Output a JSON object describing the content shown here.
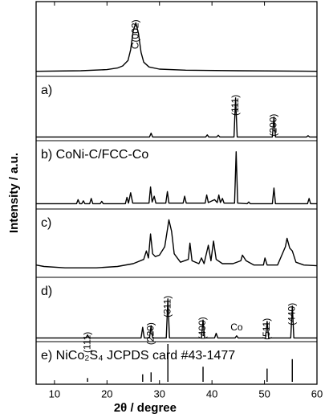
{
  "chart_data": {
    "type": "line",
    "xlabel": "2θ / degree",
    "ylabel": "Intensity / a.u.",
    "color": "#000000",
    "xlim": [
      6.5,
      60
    ],
    "xticks": [
      10,
      20,
      30,
      40,
      50,
      60
    ],
    "panels": [
      {
        "kind": "line",
        "ylim": [
          0,
          130
        ],
        "x": [
          6.5,
          15,
          20,
          22,
          23,
          24,
          24.5,
          25,
          25.5,
          26,
          26.5,
          27,
          28,
          30,
          35,
          45,
          60
        ],
        "values": [
          5,
          6,
          8,
          11,
          15,
          25,
          45,
          80,
          95,
          75,
          40,
          22,
          13,
          9,
          7,
          6,
          5
        ],
        "annotations": [
          {
            "text": "C(002)",
            "x": 25.5,
            "vertical": true
          }
        ]
      },
      {
        "kind": "line",
        "label": "a)",
        "ylim": [
          0,
          140
        ],
        "x": [
          6.5,
          28.1,
          28.4,
          28.7,
          38.8,
          39.1,
          39.4,
          40.9,
          41.2,
          41.5,
          44.2,
          44.5,
          44.8,
          51.5,
          51.8,
          52.1,
          58,
          58.3,
          58.6,
          60
        ],
        "values": [
          3,
          3,
          12,
          3,
          3,
          8,
          3,
          3,
          7,
          3,
          3,
          95,
          3,
          3,
          50,
          3,
          3,
          6,
          3,
          3
        ],
        "annotations": [
          {
            "text": "(111)",
            "x": 44.5,
            "vertical": true
          },
          {
            "text": "(200)",
            "x": 51.8,
            "vertical": true
          }
        ]
      },
      {
        "kind": "line",
        "label": "b) CoNi-C/FCC-Co",
        "ylim": [
          0,
          110
        ],
        "x": [
          6.5,
          14.2,
          14.5,
          14.8,
          15.2,
          15.5,
          15.8,
          16.7,
          17,
          17.3,
          18.7,
          19,
          19.3,
          23.5,
          23.8,
          24.1,
          24.5,
          24.9,
          28,
          28.3,
          28.6,
          29,
          29.3,
          31.2,
          31.5,
          31.8,
          34.5,
          34.8,
          35.1,
          38.7,
          39,
          39.3,
          40.5,
          41,
          41.3,
          41.6,
          42,
          42.3,
          44.3,
          44.6,
          44.9,
          46.7,
          47,
          47.3,
          51.5,
          51.8,
          52.1,
          58.2,
          58.5,
          58.8,
          60
        ],
        "values": [
          5,
          5,
          12,
          5,
          5,
          10,
          5,
          5,
          14,
          5,
          5,
          9,
          5,
          5,
          16,
          6,
          24,
          6,
          6,
          34,
          8,
          18,
          6,
          6,
          26,
          6,
          6,
          18,
          6,
          6,
          20,
          7,
          12,
          7,
          20,
          7,
          14,
          6,
          6,
          95,
          6,
          5,
          8,
          5,
          5,
          32,
          5,
          5,
          14,
          5,
          5
        ],
        "annotations": []
      },
      {
        "kind": "line",
        "label": "c)",
        "ylim": [
          0,
          90
        ],
        "x": [
          6.5,
          8,
          12,
          18,
          22,
          25,
          27,
          27.5,
          27.9,
          28.3,
          28.7,
          29.2,
          30,
          31,
          31.8,
          32.3,
          32.8,
          34,
          35.5,
          35.8,
          36.2,
          37.5,
          38,
          38.5,
          39.3,
          39.8,
          40.3,
          40.8,
          42,
          44,
          45.5,
          45.8,
          46.5,
          48,
          49.8,
          50.1,
          50.5,
          52.5,
          54,
          54.3,
          54.8,
          55.3,
          56,
          57.5,
          60
        ],
        "values": [
          14,
          12,
          10,
          10,
          12,
          16,
          22,
          34,
          24,
          58,
          30,
          26,
          28,
          40,
          78,
          62,
          30,
          18,
          22,
          45,
          20,
          16,
          24,
          16,
          42,
          20,
          48,
          22,
          16,
          16,
          20,
          28,
          20,
          14,
          14,
          24,
          14,
          14,
          40,
          52,
          38,
          34,
          18,
          14,
          13
        ],
        "annotations": []
      },
      {
        "kind": "line",
        "label": "d)",
        "ylim": [
          0,
          140
        ],
        "x": [
          6.5,
          16,
          16.3,
          16.6,
          26.5,
          26.8,
          27.1,
          28.1,
          28.4,
          28.7,
          31.3,
          31.6,
          31.9,
          38,
          38.3,
          38.6,
          40.5,
          40.8,
          41.1,
          44.4,
          44.7,
          45,
          50.2,
          50.5,
          50.8,
          55,
          55.3,
          55.6,
          60
        ],
        "values": [
          3,
          3,
          10,
          3,
          3,
          28,
          3,
          3,
          32,
          3,
          3,
          95,
          3,
          3,
          45,
          3,
          3,
          14,
          3,
          3,
          8,
          3,
          3,
          42,
          3,
          3,
          78,
          3,
          3
        ],
        "annotations": [
          {
            "text": "(111)",
            "x": 16.3,
            "vertical": true
          },
          {
            "text": "(220)",
            "x": 28.4,
            "vertical": true
          },
          {
            "text": "(311)",
            "x": 31.6,
            "vertical": true
          },
          {
            "text": "(400)",
            "x": 38.3,
            "vertical": true
          },
          {
            "text": "Co",
            "x": 44.7,
            "vertical": false
          },
          {
            "text": "(511)",
            "x": 50.5,
            "vertical": true
          },
          {
            "text": "(440)",
            "x": 55.3,
            "vertical": true
          }
        ]
      },
      {
        "kind": "stem",
        "label": "e) NiCo₂S₄  JCPDS card #43-1477",
        "ylim": [
          0,
          100
        ],
        "x": [
          16.3,
          26.8,
          28.4,
          31.6,
          38.3,
          50.5,
          55.3
        ],
        "values": [
          10,
          20,
          25,
          100,
          40,
          35,
          60
        ],
        "annotations": []
      }
    ]
  }
}
